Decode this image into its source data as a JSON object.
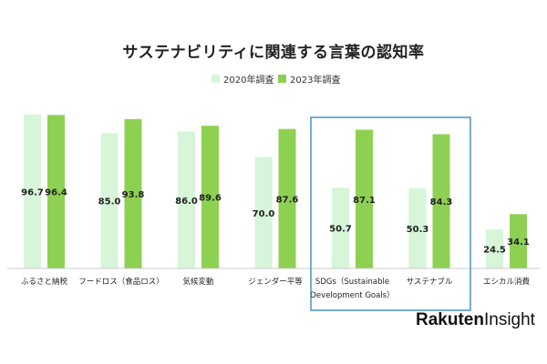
{
  "chart_data": {
    "type": "bar",
    "title": "サステナビリティに関連する言葉の認知率",
    "categories": [
      "ふるさと納税",
      "フードロス（食品ロス）",
      "気候変動",
      "ジェンダー平等",
      "SDGs（Sustainable Development Goals）",
      "サステナブル",
      "エシカル消費"
    ],
    "category_lines": [
      [
        "ふるさと納税"
      ],
      [
        "フードロス（食品ロス）"
      ],
      [
        "気候変動"
      ],
      [
        "ジェンダー平等"
      ],
      [
        "SDGs（Sustainable",
        "Development Goals）"
      ],
      [
        "サステナブル"
      ],
      [
        "エシカル消費"
      ]
    ],
    "series": [
      {
        "name": "2020年調査",
        "color": "#d7f5d9",
        "values": [
          96.7,
          85.0,
          86.0,
          70.0,
          50.7,
          50.3,
          24.5
        ]
      },
      {
        "name": "2023年調査",
        "color": "#8ed152",
        "values": [
          96.4,
          93.8,
          89.6,
          87.6,
          87.1,
          84.3,
          34.1
        ]
      }
    ],
    "ylim": [
      0,
      100
    ],
    "grid": false,
    "legend_position": "top-center",
    "highlight": {
      "categories": [
        "SDGs（Sustainable Development Goals）",
        "サステナブル"
      ],
      "color": "#4a90c8"
    }
  },
  "brand": {
    "part1": "Rakuten",
    "part2": "Insight"
  }
}
